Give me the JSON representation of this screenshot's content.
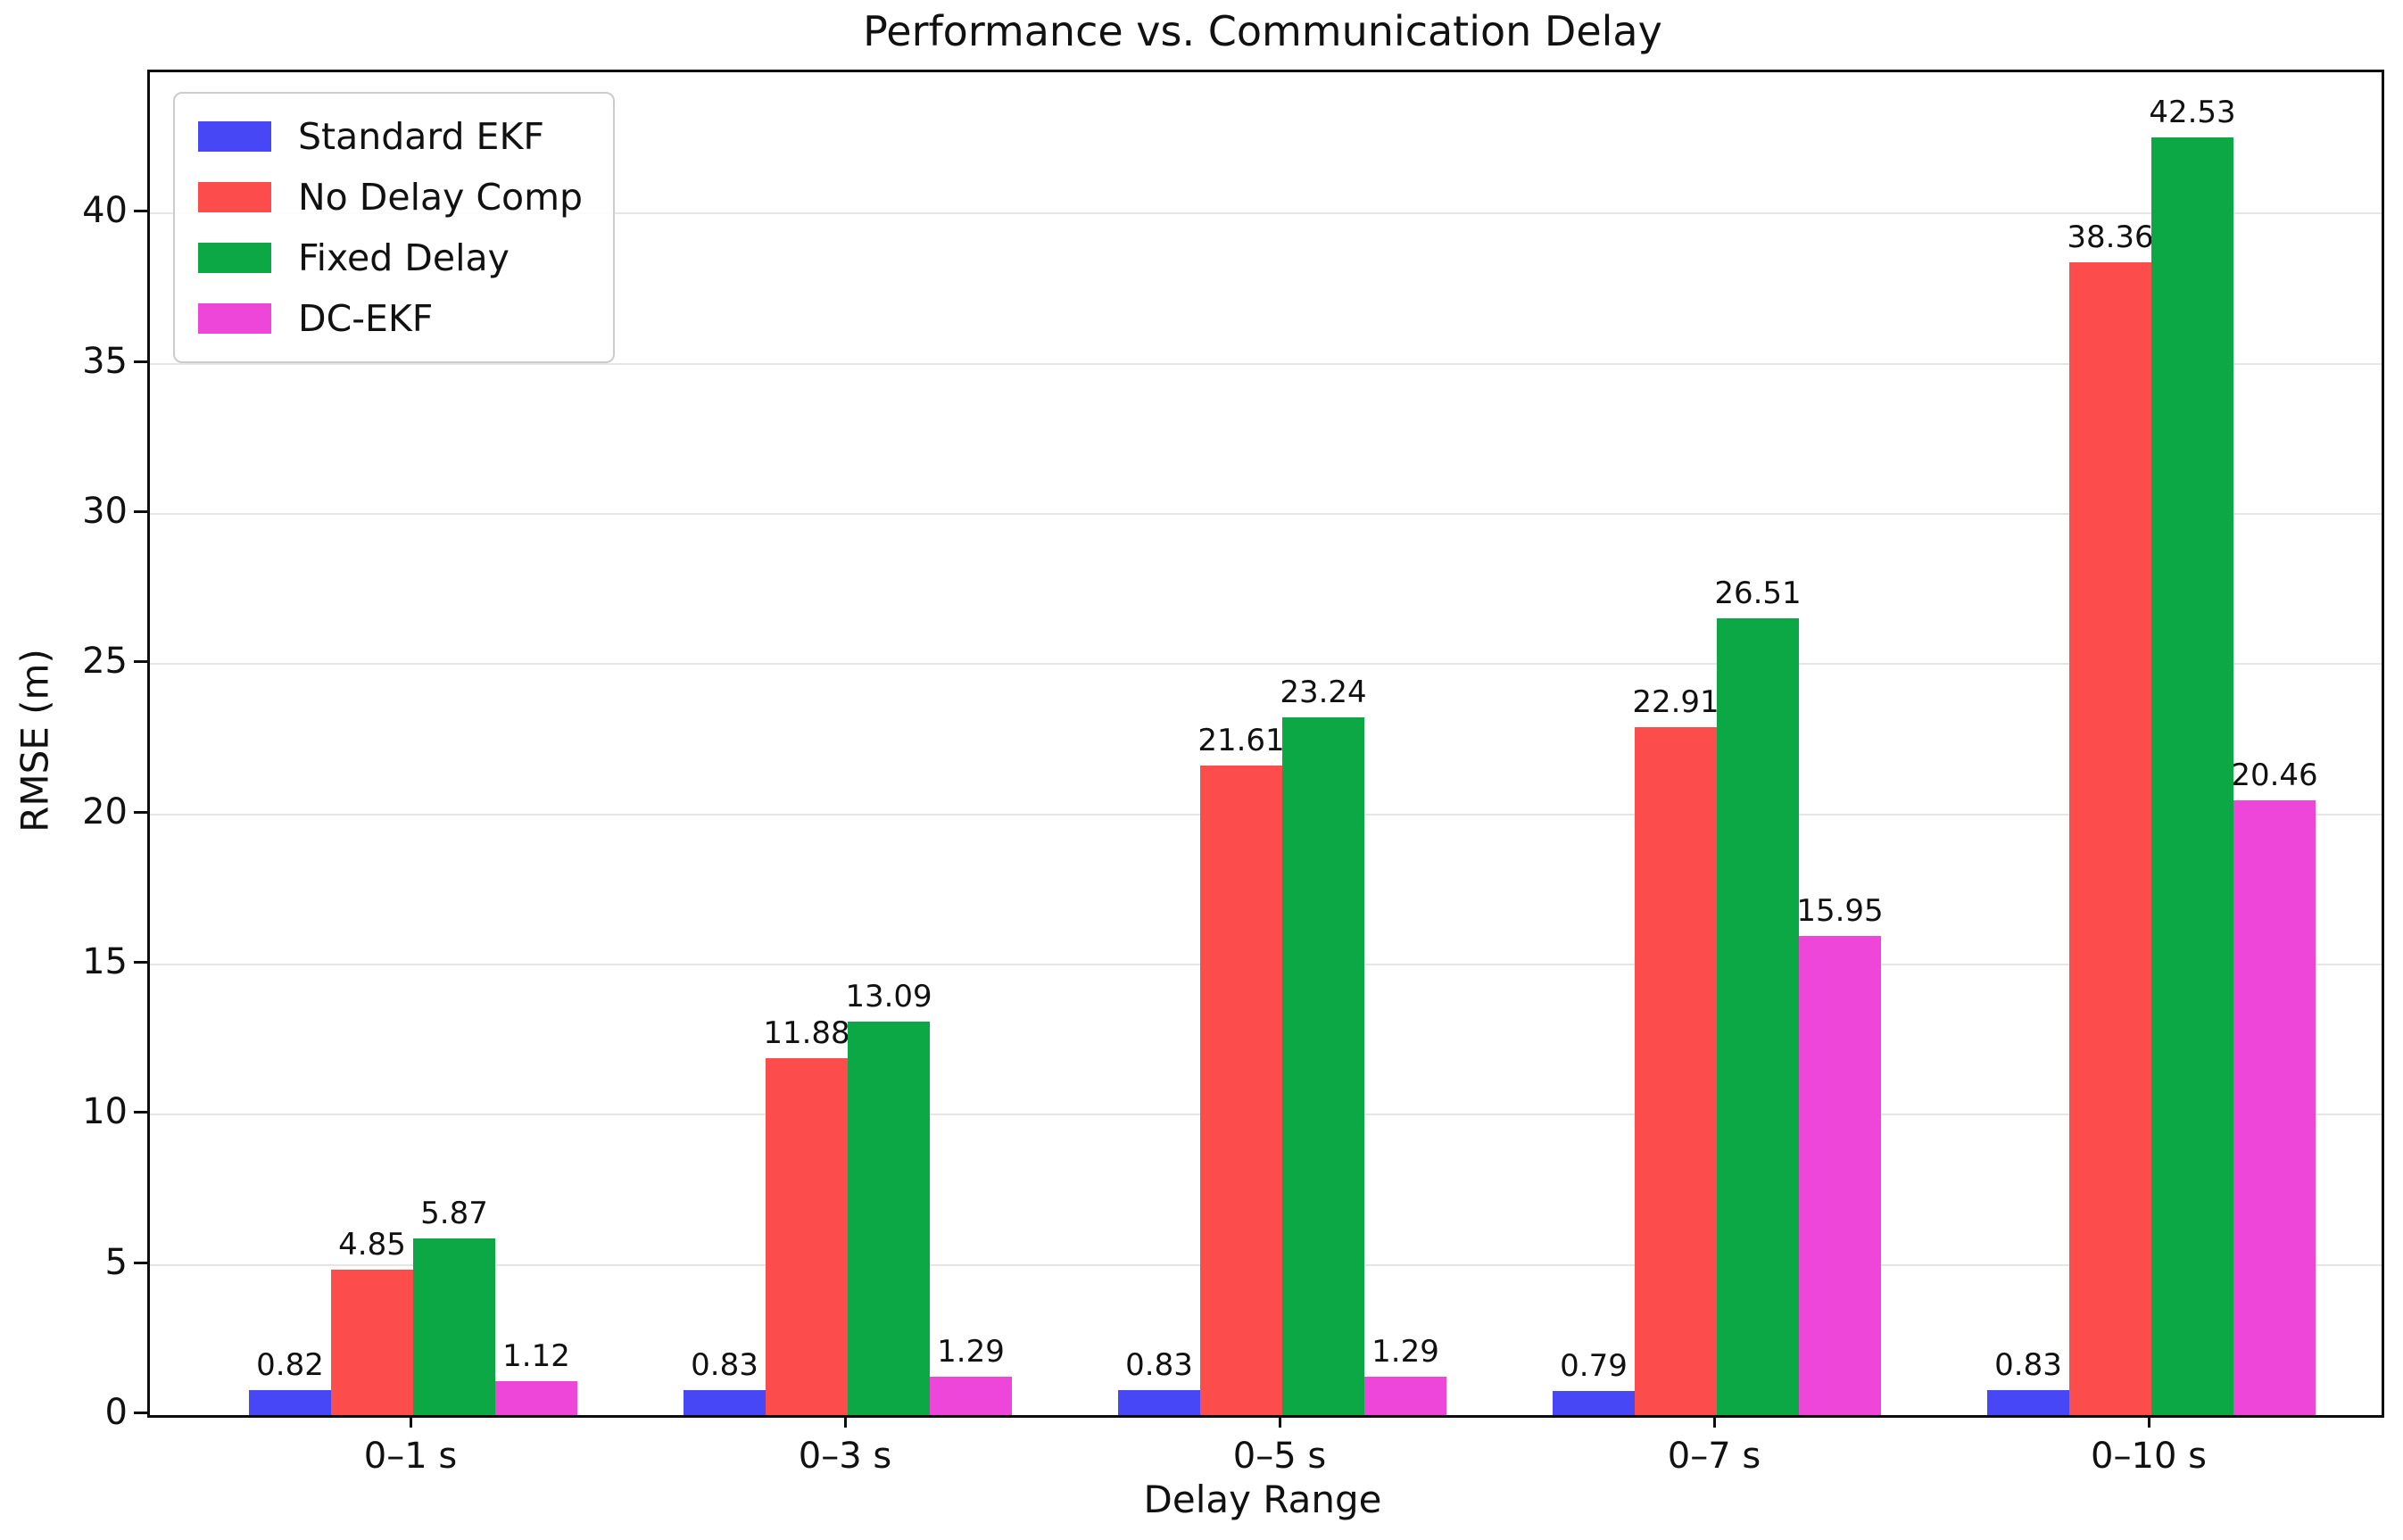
{
  "chart_data": {
    "type": "bar",
    "title": "Performance vs. Communication Delay",
    "xlabel": "Delay Range",
    "ylabel": "RMSE (m)",
    "categories": [
      "0–1 s",
      "0–3 s",
      "0–5 s",
      "0–7 s",
      "0–10 s"
    ],
    "series": [
      {
        "name": "Standard EKF",
        "color": "#4747f5",
        "values": [
          0.82,
          0.83,
          0.83,
          0.79,
          0.83
        ]
      },
      {
        "name": "No Delay Comp",
        "color": "#fc4c4c",
        "values": [
          4.85,
          11.88,
          21.61,
          22.91,
          38.36
        ]
      },
      {
        "name": "Fixed Delay",
        "color": "#0ca845",
        "values": [
          5.87,
          13.09,
          23.24,
          26.51,
          42.53
        ]
      },
      {
        "name": "DC-EKF",
        "color": "#ee46d8",
        "values": [
          1.12,
          1.29,
          1.29,
          15.95,
          20.46
        ]
      }
    ],
    "bar_value_labels": [
      "0.82",
      "0.83",
      "0.83",
      "0.79",
      "0.83",
      "4.85",
      "11.88",
      "21.61",
      "22.91",
      "38.36",
      "5.87",
      "13.09",
      "23.24",
      "26.51",
      "42.53",
      "1.12",
      "1.29",
      "1.29",
      "15.95",
      "20.46"
    ],
    "ylim": [
      0,
      44.7
    ],
    "yticks": [
      0,
      5,
      10,
      15,
      20,
      25,
      30,
      35,
      40
    ],
    "grid": "horizontal-only",
    "gridline_color": "#e5e5e5",
    "legend_position": "upper-left",
    "value_label_decimals": 2
  }
}
